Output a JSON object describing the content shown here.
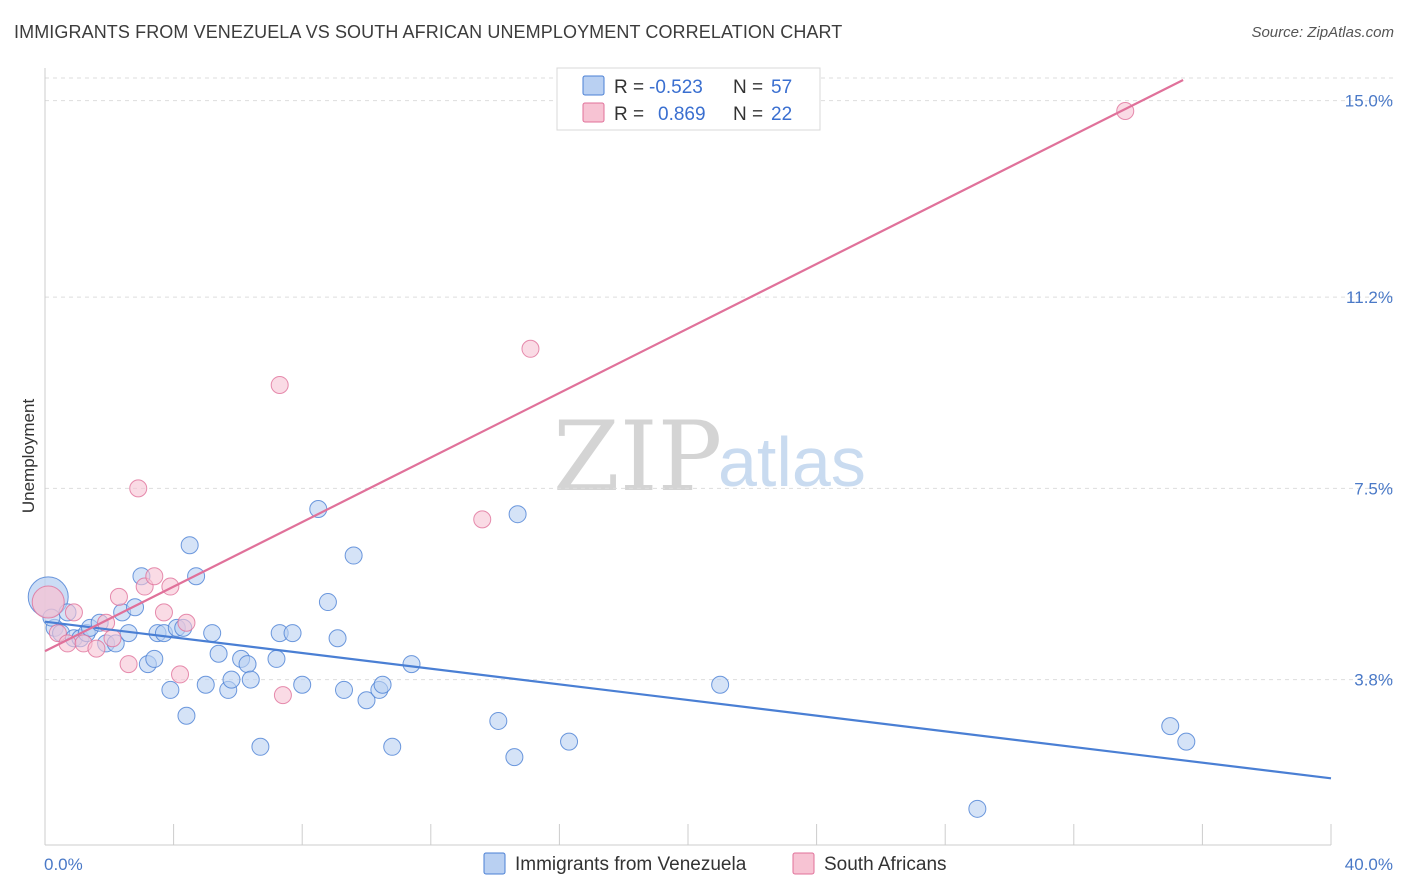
{
  "header": {
    "title": "IMMIGRANTS FROM VENEZUELA VS SOUTH AFRICAN UNEMPLOYMENT CORRELATION CHART",
    "source": "Source: ZipAtlas.com"
  },
  "watermark": {
    "zip": "ZIP",
    "atlas": "atlas"
  },
  "colors": {
    "blue": "#4a7fd4",
    "blue_fill": "#b9d0f2",
    "pink": "#e0719a",
    "pink_fill": "#f7c3d3",
    "axis_label": "#4a79c7"
  },
  "legend": {
    "rows": [
      {
        "r_label": "R =",
        "r_value": "-0.523",
        "n_label": "N =",
        "n_value": "57",
        "series": "blue"
      },
      {
        "r_label": "R =",
        "r_value": "0.869",
        "n_label": "N =",
        "n_value": "22",
        "series": "pink"
      }
    ]
  },
  "chart_data": {
    "type": "scatter",
    "title": "IMMIGRANTS FROM VENEZUELA VS SOUTH AFRICAN UNEMPLOYMENT CORRELATION CHART",
    "xlabel": "",
    "ylabel": "Unemployment",
    "xlim": [
      0,
      40
    ],
    "ylim": [
      0.6,
      15.4
    ],
    "x_tick_labels": [
      "0.0%",
      "40.0%"
    ],
    "y_ticks": [
      3.8,
      7.5,
      11.2,
      15.0
    ],
    "y_tick_labels": [
      "3.8%",
      "7.5%",
      "11.2%",
      "15.0%"
    ],
    "series": [
      {
        "name": "Immigrants from Venezuela",
        "color": "blue",
        "points": [
          [
            0.1,
            5.4
          ],
          [
            0.3,
            4.8
          ],
          [
            0.5,
            4.7
          ],
          [
            0.7,
            5.1
          ],
          [
            0.9,
            4.6
          ],
          [
            1.1,
            4.6
          ],
          [
            1.3,
            4.7
          ],
          [
            1.4,
            4.8
          ],
          [
            1.7,
            4.9
          ],
          [
            1.9,
            4.5
          ],
          [
            2.2,
            4.5
          ],
          [
            2.4,
            5.1
          ],
          [
            2.6,
            4.7
          ],
          [
            2.8,
            5.2
          ],
          [
            3.0,
            5.8
          ],
          [
            3.2,
            4.1
          ],
          [
            3.4,
            4.2
          ],
          [
            3.5,
            4.7
          ],
          [
            3.7,
            4.7
          ],
          [
            3.9,
            3.6
          ],
          [
            4.1,
            4.8
          ],
          [
            4.3,
            4.8
          ],
          [
            4.4,
            3.1
          ],
          [
            4.7,
            5.8
          ],
          [
            4.5,
            6.4
          ],
          [
            5.0,
            3.7
          ],
          [
            5.2,
            4.7
          ],
          [
            5.4,
            4.3
          ],
          [
            5.7,
            3.6
          ],
          [
            5.8,
            3.8
          ],
          [
            6.1,
            4.2
          ],
          [
            6.3,
            4.1
          ],
          [
            6.4,
            3.8
          ],
          [
            6.7,
            2.5
          ],
          [
            7.2,
            4.2
          ],
          [
            7.3,
            4.7
          ],
          [
            7.7,
            4.7
          ],
          [
            8.0,
            3.7
          ],
          [
            8.5,
            7.1
          ],
          [
            8.8,
            5.3
          ],
          [
            9.1,
            4.6
          ],
          [
            9.3,
            3.6
          ],
          [
            9.6,
            6.2
          ],
          [
            10.0,
            3.4
          ],
          [
            10.4,
            3.6
          ],
          [
            10.5,
            3.7
          ],
          [
            10.8,
            2.5
          ],
          [
            11.4,
            4.1
          ],
          [
            14.1,
            3.0
          ],
          [
            14.6,
            2.3
          ],
          [
            14.7,
            7.0
          ],
          [
            16.3,
            2.6
          ],
          [
            21.0,
            3.7
          ],
          [
            29.0,
            1.3
          ],
          [
            35.0,
            2.9
          ],
          [
            35.5,
            2.6
          ],
          [
            0.2,
            5.0
          ]
        ]
      },
      {
        "name": "South Africans",
        "color": "pink",
        "points": [
          [
            0.1,
            5.3
          ],
          [
            0.4,
            4.7
          ],
          [
            0.7,
            4.5
          ],
          [
            0.9,
            5.1
          ],
          [
            1.2,
            4.5
          ],
          [
            1.6,
            4.4
          ],
          [
            1.9,
            4.9
          ],
          [
            2.1,
            4.6
          ],
          [
            2.3,
            5.4
          ],
          [
            2.6,
            4.1
          ],
          [
            2.9,
            7.5
          ],
          [
            3.1,
            5.6
          ],
          [
            3.4,
            5.8
          ],
          [
            3.7,
            5.1
          ],
          [
            3.9,
            5.6
          ],
          [
            4.4,
            4.9
          ],
          [
            4.2,
            3.9
          ],
          [
            7.3,
            9.5
          ],
          [
            7.4,
            3.5
          ],
          [
            13.6,
            6.9
          ],
          [
            15.1,
            10.2
          ],
          [
            33.6,
            14.8
          ]
        ]
      }
    ],
    "trend_lines": [
      {
        "series": "Immigrants from Venezuela",
        "x": [
          0,
          40
        ],
        "y": [
          4.92,
          1.89
        ]
      },
      {
        "series": "South Africans",
        "x": [
          0,
          35.4
        ],
        "y": [
          4.35,
          15.4
        ]
      }
    ],
    "legend_position": "top-center"
  },
  "bottom_legend": {
    "items": [
      {
        "label": "Immigrants from Venezuela",
        "series": "blue"
      },
      {
        "label": "South Africans",
        "series": "pink"
      }
    ]
  }
}
